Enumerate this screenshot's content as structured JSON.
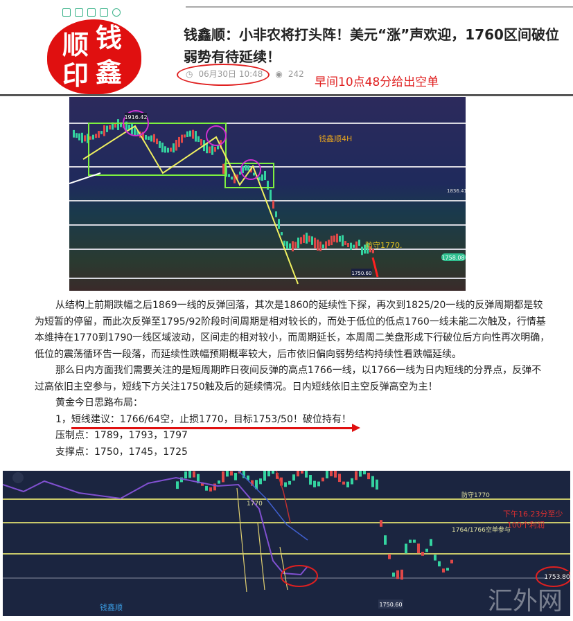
{
  "header": {
    "title": "钱鑫顺：小非农将打头阵！美元“涨”声欢迎，1760区间破位弱势有待延续！",
    "date": "06月30日 10:48",
    "views": "242",
    "annotation": "早间10点48分给出空单",
    "seal_text": [
      "钱",
      "鑫",
      "顺",
      "印"
    ],
    "toolbar_icons": [
      "qr-icon",
      "expand-icon",
      "image-icon",
      "share-icon",
      "settings-icon"
    ]
  },
  "chart1": {
    "peak_label": "1916.42",
    "watermark": "钱鑫顺4H",
    "defend_label": "防守1770.",
    "current_price": "1758.08",
    "low_label": "1750.60",
    "side_price": "1836.41"
  },
  "article": {
    "paragraphs": [
      "从结构上前期跌幅之后1869一线的反弹回落，其次是1860的延续性下探，再次到1825/20一线的反弹周期都是较为短暂的停留，而此次反弹至1795/92阶段时间周期是相对较长的，而处于低位的低点1760一线未能二次触及，行情基本维持在1770到1790一线区域波动，区间走的相对较小，而周期延长，本周周二美盘形成下行破位后方向性再次明确，低位的震荡循环告一段落，而延续性跌幅预期概率较大，后市依旧偏向弱势结构持续性看跌幅延续。",
      "那么日内方面我们需要关注的是短周期昨日夜间反弹的高点1766一线，以1766一线为日内短线的分界点，反弹不过高依旧主空参与，短线下方关注1750触及后的延续情况。日内短线依旧主空反弹高空为主！"
    ],
    "plan_heading": "黄金今日思路布局：",
    "suggestion": "1，短线建议：1766/64空，止损1770，目标1753/50！破位持有！",
    "resistance": "压制点：1789，1793，1797",
    "support": "支撑点：1750，1745，1725"
  },
  "chart2": {
    "line_label": "1770",
    "defend_label": "防守1770",
    "profit_note_1": "下午16.23分至少",
    "profit_note_2": "100个利润",
    "entry_label": "1764/1766空单参与",
    "low_label": "1750.60",
    "current_price": "1753.80",
    "brand": "钱鑫顺",
    "watermark": "汇外网"
  },
  "colors": {
    "accent_red": "#e01010",
    "chart_bg": "#1b2540",
    "candle_up": "#e04848",
    "candle_down": "#34d3a0",
    "level_line": "#c8c86a"
  }
}
